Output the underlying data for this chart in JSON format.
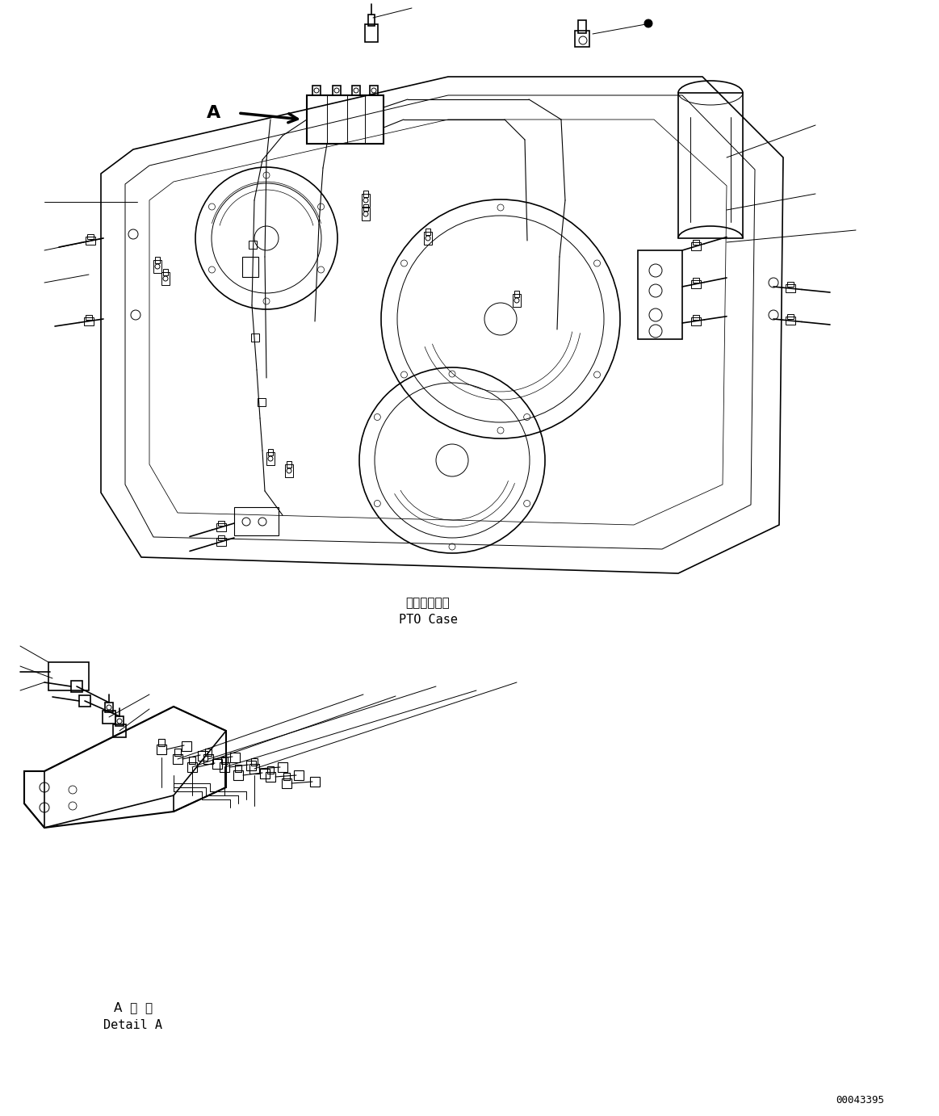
{
  "background_color": "#ffffff",
  "line_color": "#000000",
  "lw_main": 1.2,
  "lw_thin": 0.7,
  "lw_detail": 0.8,
  "figure_width": 11.63,
  "figure_height": 13.82,
  "dpi": 100,
  "label_pto_case_jp": "ＰＴＯケース",
  "label_pto_case_en": "PTO Case",
  "label_detail_jp": "A  詳  細",
  "label_detail_en": "Detail A",
  "label_a": "A",
  "part_number": "00043395",
  "font_size_label": 11,
  "font_size_a": 16,
  "font_size_partnumber": 9
}
